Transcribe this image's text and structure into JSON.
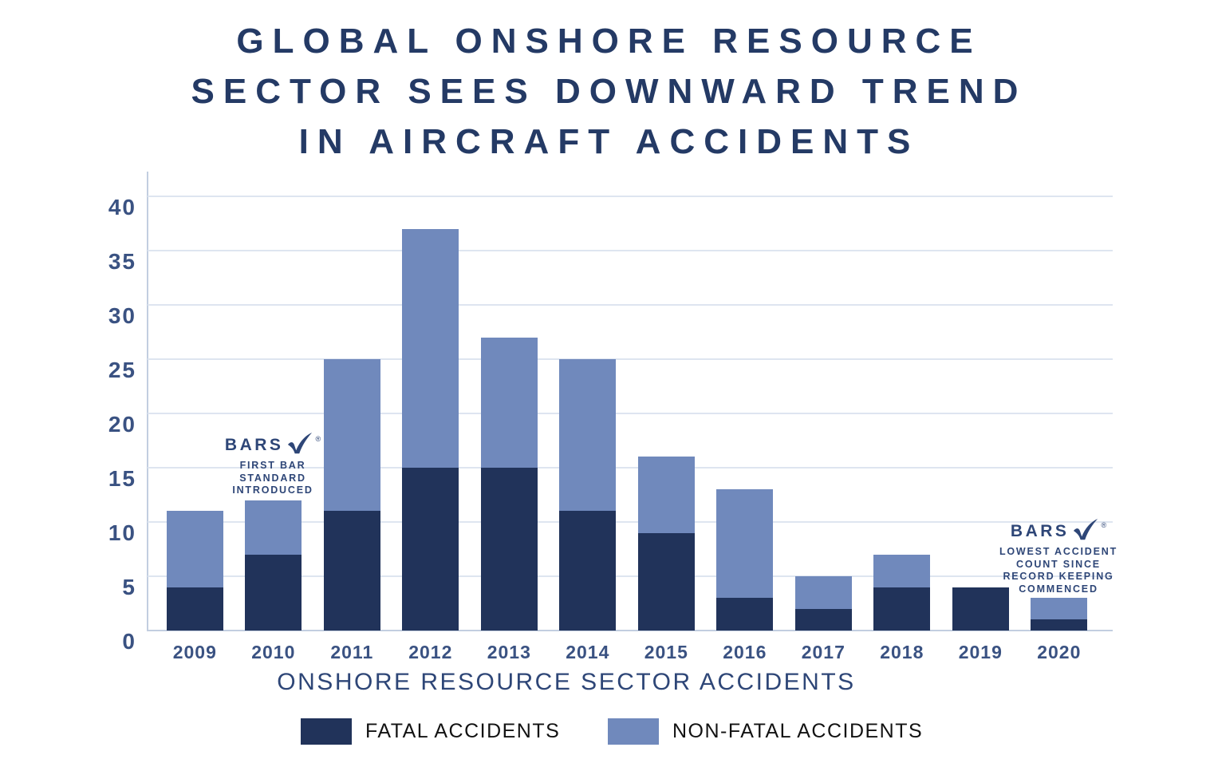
{
  "title": {
    "lines": [
      "GLOBAL ONSHORE RESOURCE",
      "SECTOR SEES DOWNWARD TREND",
      "IN AIRCRAFT ACCIDENTS"
    ]
  },
  "chart_data": {
    "type": "bar",
    "stacked": true,
    "title": "GLOBAL ONSHORE RESOURCE SECTOR SEES DOWNWARD TREND IN AIRCRAFT ACCIDENTS",
    "categories": [
      "2009",
      "2010",
      "2011",
      "2012",
      "2013",
      "2014",
      "2015",
      "2016",
      "2017",
      "2018",
      "2019",
      "2020"
    ],
    "series": [
      {
        "name": "FATAL ACCIDENTS",
        "color": "#21335A",
        "values": [
          4,
          7,
          11,
          15,
          15,
          11,
          9,
          3,
          2,
          4,
          4,
          1
        ]
      },
      {
        "name": "NON-FATAL ACCIDENTS",
        "color": "#7089BC",
        "values": [
          7,
          5,
          14,
          22,
          12,
          14,
          7,
          10,
          3,
          3,
          0,
          2
        ]
      }
    ],
    "totals": [
      11,
      12,
      25,
      37,
      27,
      25,
      16,
      13,
      5,
      7,
      4,
      3
    ],
    "xlabel": "ONSHORE RESOURCE SECTOR ACCIDENTS",
    "ylabel": "",
    "ylim": [
      0,
      40
    ],
    "yticks": [
      0,
      5,
      10,
      15,
      20,
      25,
      30,
      35,
      40
    ],
    "grid": true,
    "legend_position": "bottom",
    "annotations": [
      {
        "logo": "BARS",
        "reg_mark": "®",
        "text": "FIRST BAR\nSTANDARD\nINTRODUCED",
        "anchor_category": "2010"
      },
      {
        "logo": "BARS",
        "reg_mark": "®",
        "text": "LOWEST ACCIDENT\nCOUNT SINCE\nRECORD KEEPING\nCOMMENCED",
        "anchor_category": "2020"
      }
    ]
  },
  "legend": {
    "items": [
      {
        "label": "FATAL ACCIDENTS",
        "color": "#21335A"
      },
      {
        "label": "NON-FATAL ACCIDENTS",
        "color": "#7089BC"
      }
    ]
  },
  "colors": {
    "title_navy": "#243A65",
    "axis_text_navy": "#3A5282",
    "label_navy": "#2E4677",
    "gridline": "#DEE5F0",
    "axis_line": "#C2CEE0",
    "fatal": "#21335A",
    "non_fatal": "#7089BC",
    "background": "#FFFFFF"
  }
}
